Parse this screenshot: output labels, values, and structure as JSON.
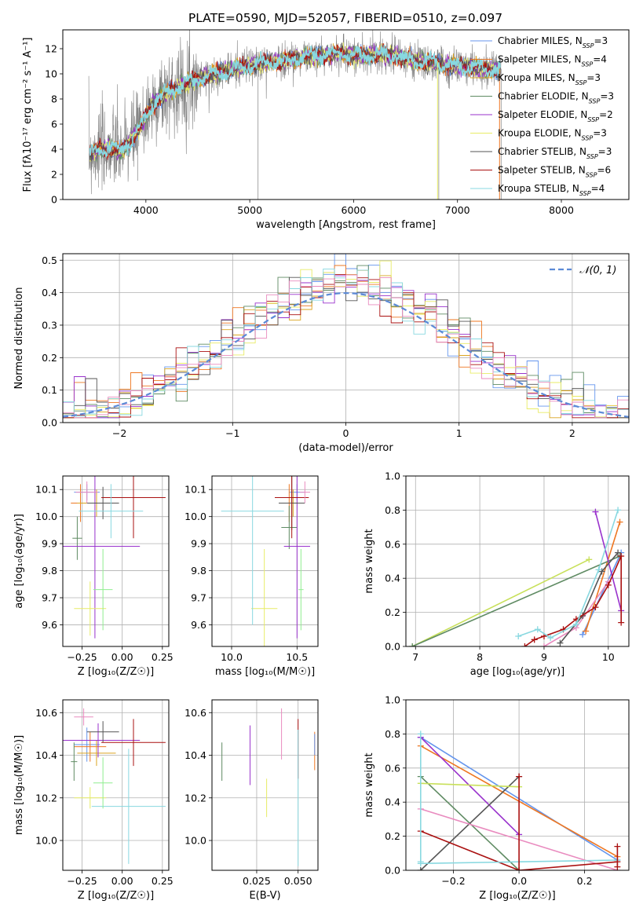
{
  "title": "PLATE=0590, MJD=52057, FIBERID=0510, z=0.097",
  "colors": {
    "Chabrier MILES": "#6495ed",
    "Salpeter MILES": "#ee7722",
    "Kroupa MILES": "#daa520",
    "Chabrier ELODIE": "#5f8b63",
    "Salpeter ELODIE": "#9932cc",
    "Kroupa ELODIE": "#e8ec66",
    "Chabrier STELIB": "#555555",
    "Salpeter STELIB": "#aa1111",
    "Kroupa STELIB": "#88d8e0",
    "gray": "#808080",
    "normal": "#5c8ad6",
    "pink": "#e98bbf",
    "ygreen": "#c8e05a",
    "lgreen": "#90ee90"
  },
  "chart_data": [
    {
      "id": "spectrum",
      "type": "line",
      "title": "PLATE=0590, MJD=52057, FIBERID=0510, z=0.097",
      "xlabel": "wavelength [Angstrom, rest frame]",
      "ylabel": "Flux [fλ10⁻¹⁷ erg cm⁻² s⁻¹ A⁻¹]",
      "xlim": [
        3200,
        8650
      ],
      "ylim": [
        0,
        13.5
      ],
      "xticks": [
        4000,
        5000,
        6000,
        7000,
        8000
      ],
      "yticks": [
        0,
        2,
        4,
        6,
        8,
        10,
        12
      ],
      "continuum": {
        "x": [
          3450,
          3550,
          3650,
          3750,
          3850,
          3950,
          4050,
          4150,
          4300,
          4500,
          4700,
          4900,
          5100,
          5300,
          5500,
          5700,
          5900,
          6100,
          6300,
          6500,
          6700,
          6900,
          7100,
          7300,
          7420
        ],
        "y": [
          3.6,
          4.0,
          4.1,
          3.8,
          4.6,
          5.8,
          7.4,
          8.2,
          8.9,
          9.6,
          10.1,
          10.5,
          10.8,
          11.0,
          11.3,
          11.5,
          11.6,
          11.4,
          11.6,
          11.2,
          10.9,
          10.7,
          10.6,
          10.3,
          10.4
        ]
      },
      "legend": [
        {
          "label": "Chabrier MILES, N",
          "sub": "SSP",
          "suffix": "=3"
        },
        {
          "label": "Salpeter MILES, N",
          "sub": "SSP",
          "suffix": "=4"
        },
        {
          "label": "Kroupa MILES, N",
          "sub": "SSP",
          "suffix": "=3"
        },
        {
          "label": "Chabrier ELODIE, N",
          "sub": "SSP",
          "suffix": "=3"
        },
        {
          "label": "Salpeter ELODIE, N",
          "sub": "SSP",
          "suffix": "=2"
        },
        {
          "label": "Kroupa ELODIE, N",
          "sub": "SSP",
          "suffix": "=3"
        },
        {
          "label": "Chabrier STELIB, N",
          "sub": "SSP",
          "suffix": "=3"
        },
        {
          "label": "Salpeter STELIB, N",
          "sub": "SSP",
          "suffix": "=6"
        },
        {
          "label": "Kroupa STELIB, N",
          "sub": "SSP",
          "suffix": "=4"
        }
      ],
      "legend_position": "right"
    },
    {
      "id": "residuals",
      "type": "histogram",
      "xlabel": "(data-model)/error",
      "ylabel": "Normed distribution",
      "xlim": [
        -2.5,
        2.5
      ],
      "ylim": [
        0,
        0.52
      ],
      "xticks": [
        -2,
        -1,
        0,
        1,
        2
      ],
      "yticks": [
        0.0,
        0.1,
        0.2,
        0.3,
        0.4,
        0.5
      ],
      "bin_width": 0.1,
      "legend": "𝒩(0, 1)",
      "legend_position": "top-right",
      "grid": true
    },
    {
      "id": "age-vs-Z",
      "type": "errorbar",
      "xlabel": "Z [log₁₀(Z/Z☉)]",
      "ylabel": "age [log₁₀(age/yr)]",
      "xlim": [
        -0.37,
        0.29
      ],
      "ylim": [
        9.52,
        10.15
      ],
      "xticks": [
        -0.25,
        0.0,
        0.25
      ],
      "xticklabels": [
        "−0.25",
        "0.00",
        "0.25"
      ],
      "yticks": [
        9.6,
        9.7,
        9.8,
        9.9,
        10.0,
        10.1
      ],
      "grid": true,
      "points": [
        {
          "c": "Chabrier MILES",
          "x": -0.22,
          "xe": 0.08,
          "y": 10.09,
          "ye": 0.03
        },
        {
          "c": "Salpeter MILES",
          "x": -0.26,
          "xe": 0.06,
          "y": 10.05,
          "ye": 0.07
        },
        {
          "c": "Kroupa MILES",
          "x": -0.16,
          "xe": 0.12,
          "y": 10.05,
          "ye": 0.05
        },
        {
          "c": "Chabrier ELODIE",
          "x": -0.28,
          "xe": 0.03,
          "y": 9.92,
          "ye": 0.08
        },
        {
          "c": "Salpeter ELODIE",
          "x": -0.17,
          "xe": 0.28,
          "y": 9.89,
          "ye": 0.34
        },
        {
          "c": "Kroupa ELODIE",
          "x": -0.2,
          "xe": 0.1,
          "y": 9.66,
          "ye": 0.1
        },
        {
          "c": "Chabrier STELIB",
          "x": -0.12,
          "xe": 0.1,
          "y": 10.05,
          "ye": 0.06
        },
        {
          "c": "Salpeter STELIB",
          "x": 0.07,
          "xe": 0.2,
          "y": 10.07,
          "ye": 0.15
        },
        {
          "c": "Kroupa STELIB",
          "x": -0.07,
          "xe": 0.2,
          "y": 10.02,
          "ye": 0.1
        },
        {
          "c": "lgreen",
          "x": -0.12,
          "xe": 0.06,
          "y": 9.73,
          "ye": 0.15
        },
        {
          "c": "pink",
          "x": -0.22,
          "xe": 0.07,
          "y": 10.09,
          "ye": 0.04
        }
      ]
    },
    {
      "id": "age-vs-mass",
      "type": "errorbar",
      "xlabel": "mass [log₁₀(M/M☉)]",
      "xlim": [
        9.85,
        10.66
      ],
      "ylim": [
        9.52,
        10.15
      ],
      "xticks": [
        10.0,
        10.5
      ],
      "xticklabels": [
        "10.0",
        "10.5"
      ],
      "yticks": [
        9.6,
        9.7,
        9.8,
        9.9,
        10.0,
        10.1
      ],
      "grid": true,
      "points": [
        {
          "c": "Chabrier MILES",
          "x": 10.5,
          "xe": 0.06,
          "y": 10.09,
          "ye": 0.03
        },
        {
          "c": "Salpeter MILES",
          "x": 10.44,
          "xe": 0.05,
          "y": 10.05,
          "ye": 0.07
        },
        {
          "c": "Kroupa MILES",
          "x": 10.47,
          "xe": 0.04,
          "y": 10.05,
          "ye": 0.05
        },
        {
          "c": "Chabrier ELODIE",
          "x": 10.44,
          "xe": 0.06,
          "y": 9.96,
          "ye": 0.08
        },
        {
          "c": "Salpeter ELODIE",
          "x": 10.5,
          "xe": 0.1,
          "y": 9.89,
          "ye": 0.34
        },
        {
          "c": "Kroupa ELODIE",
          "x": 10.25,
          "xe": 0.1,
          "y": 9.66,
          "ye": 0.22
        },
        {
          "c": "Chabrier STELIB",
          "x": 10.46,
          "xe": 0.1,
          "y": 10.05,
          "ye": 0.1
        },
        {
          "c": "Salpeter STELIB",
          "x": 10.46,
          "xe": 0.13,
          "y": 10.07,
          "ye": 0.15
        },
        {
          "c": "Kroupa STELIB",
          "x": 10.16,
          "xe": 0.24,
          "y": 10.02,
          "ye": 0.42
        },
        {
          "c": "lgreen",
          "x": 10.53,
          "xe": 0.02,
          "y": 9.73,
          "ye": 0.15
        },
        {
          "c": "pink",
          "x": 10.56,
          "xe": 0.04,
          "y": 10.09,
          "ye": 0.04
        }
      ]
    },
    {
      "id": "weight-vs-age",
      "type": "line",
      "xlabel": "age [log₁₀(age/yr)]",
      "ylabel": "mass weight",
      "xlim": [
        6.85,
        10.32
      ],
      "ylim": [
        0,
        1
      ],
      "xticks": [
        7,
        8,
        9,
        10
      ],
      "yticks": [
        0.0,
        0.2,
        0.4,
        0.6,
        0.8,
        1.0
      ],
      "grid": true,
      "series": [
        {
          "c": "Chabrier MILES",
          "x": [
            9.6,
            10.2
          ],
          "y": [
            0.07,
            0.55
          ]
        },
        {
          "c": "Salpeter MILES",
          "x": [
            9.65,
            10.18
          ],
          "y": [
            0.09,
            0.73
          ]
        },
        {
          "c": "ygreen",
          "x": [
            6.95,
            9.7
          ],
          "y": [
            0.0,
            0.51
          ]
        },
        {
          "c": "Chabrier ELODIE",
          "x": [
            6.95,
            10.18
          ],
          "y": [
            0.0,
            0.53
          ]
        },
        {
          "c": "Salpeter ELODIE",
          "x": [
            9.8,
            10.2
          ],
          "y": [
            0.79,
            0.21
          ]
        },
        {
          "c": "pink",
          "x": [
            9.0,
            9.5,
            10.0
          ],
          "y": [
            0.0,
            0.11,
            0.38
          ]
        },
        {
          "c": "Chabrier STELIB",
          "x": [
            9.25,
            9.6,
            9.9,
            10.15
          ],
          "y": [
            0.02,
            0.18,
            0.44,
            0.55
          ]
        },
        {
          "c": "Salpeter STELIB",
          "x": [
            8.7,
            8.85,
            9.0,
            9.3,
            9.5,
            9.8,
            10.0,
            10.2,
            10.2
          ],
          "y": [
            0.0,
            0.04,
            0.06,
            0.1,
            0.16,
            0.23,
            0.36,
            0.53,
            0.14
          ]
        },
        {
          "c": "Kroupa STELIB",
          "x": [
            8.6,
            8.9,
            9.1,
            9.5,
            9.85,
            10.15
          ],
          "y": [
            0.06,
            0.1,
            0.05,
            0.13,
            0.45,
            0.8
          ]
        }
      ]
    },
    {
      "id": "mass-vs-Z",
      "type": "errorbar",
      "xlabel": "Z [log₁₀(Z/Z☉)]",
      "ylabel": "mass [log₁₀(M/M☉)]",
      "xlim": [
        -0.37,
        0.29
      ],
      "ylim": [
        9.86,
        10.66
      ],
      "xticks": [
        -0.25,
        0.0,
        0.25
      ],
      "xticklabels": [
        "−0.25",
        "0.00",
        "0.25"
      ],
      "yticks": [
        10.0,
        10.2,
        10.4,
        10.6
      ],
      "grid": true,
      "points": [
        {
          "c": "Chabrier MILES",
          "x": -0.22,
          "xe": 0.08,
          "y": 10.45,
          "ye": 0.08
        },
        {
          "c": "Salpeter MILES",
          "x": -0.2,
          "xe": 0.1,
          "y": 10.44,
          "ye": 0.07
        },
        {
          "c": "Kroupa MILES",
          "x": -0.16,
          "xe": 0.12,
          "y": 10.41,
          "ye": 0.06
        },
        {
          "c": "Chabrier ELODIE",
          "x": -0.3,
          "xe": 0.02,
          "y": 10.37,
          "ye": 0.09
        },
        {
          "c": "Salpeter ELODIE",
          "x": -0.15,
          "xe": 0.26,
          "y": 10.47,
          "ye": 0.08
        },
        {
          "c": "Kroupa ELODIE",
          "x": -0.2,
          "xe": 0.1,
          "y": 10.2,
          "ye": 0.05
        },
        {
          "c": "Chabrier STELIB",
          "x": -0.12,
          "xe": 0.1,
          "y": 10.51,
          "ye": 0.05
        },
        {
          "c": "Salpeter STELIB",
          "x": 0.07,
          "xe": 0.2,
          "y": 10.46,
          "ye": 0.11
        },
        {
          "c": "Kroupa STELIB",
          "x": 0.04,
          "xe": 0.23,
          "y": 10.16,
          "ye": 0.27
        },
        {
          "c": "lgreen",
          "x": -0.12,
          "xe": 0.06,
          "y": 10.27,
          "ye": 0.12
        },
        {
          "c": "pink",
          "x": -0.24,
          "xe": 0.06,
          "y": 10.58,
          "ye": 0.04
        }
      ]
    },
    {
      "id": "mass-vs-ebv",
      "type": "errorbar",
      "xlabel": "E(B-V)",
      "xlim": [
        -0.002,
        0.062
      ],
      "ylim": [
        9.86,
        10.66
      ],
      "xticks": [
        0.025,
        0.05
      ],
      "xticklabels": [
        "0.025",
        "0.050"
      ],
      "yticks": [
        10.0,
        10.2,
        10.4,
        10.6
      ],
      "grid": true,
      "points": [
        {
          "c": "Chabrier ELODIE",
          "x": 0.004,
          "y": 10.37,
          "ye": 0.09
        },
        {
          "c": "Salpeter ELODIE",
          "x": 0.021,
          "y": 10.4,
          "ye": 0.14
        },
        {
          "c": "Kroupa ELODIE",
          "x": 0.031,
          "y": 10.2,
          "ye": 0.09
        },
        {
          "c": "pink",
          "x": 0.04,
          "y": 10.5,
          "ye": 0.12
        },
        {
          "c": "Salpeter STELIB",
          "x": 0.05,
          "y": 10.43,
          "ye": 0.14
        },
        {
          "c": "Kroupa STELIB",
          "x": 0.05,
          "y": 10.2,
          "ye": 0.32
        },
        {
          "c": "Salpeter MILES",
          "x": 0.06,
          "y": 10.42,
          "ye": 0.09
        },
        {
          "c": "Chabrier MILES",
          "x": 0.06,
          "y": 10.45,
          "ye": 0.05
        }
      ]
    },
    {
      "id": "weight-vs-Z",
      "type": "line",
      "xlabel": "Z [log₁₀(Z/Z☉)]",
      "ylabel": "mass weight",
      "xlim": [
        -0.345,
        0.335
      ],
      "ylim": [
        0,
        1
      ],
      "xticks": [
        -0.2,
        0.0,
        0.2
      ],
      "xticklabels": [
        "−0.2",
        "0.0",
        "0.2"
      ],
      "yticks": [
        0.0,
        0.2,
        0.4,
        0.6,
        0.8,
        1.0
      ],
      "grid": true,
      "series": [
        {
          "c": "Chabrier MILES",
          "x": [
            -0.3,
            0.3
          ],
          "y": [
            0.78,
            0.06
          ]
        },
        {
          "c": "Salpeter MILES",
          "x": [
            -0.3,
            0.3
          ],
          "y": [
            0.73,
            0.08
          ]
        },
        {
          "c": "Salpeter ELODIE",
          "x": [
            -0.3,
            0.0
          ],
          "y": [
            0.78,
            0.21
          ]
        },
        {
          "c": "Chabrier ELODIE",
          "x": [
            -0.3,
            0.0
          ],
          "y": [
            0.55,
            0.0
          ]
        },
        {
          "c": "Chabrier STELIB",
          "x": [
            -0.3,
            0.0
          ],
          "y": [
            0.0,
            0.55
          ]
        },
        {
          "c": "ygreen",
          "x": [
            -0.3,
            0.0
          ],
          "y": [
            0.51,
            0.49
          ]
        },
        {
          "c": "pink",
          "x": [
            -0.3,
            0.3
          ],
          "y": [
            0.36,
            0.0
          ]
        },
        {
          "c": "Salpeter STELIB",
          "x": [
            -0.3,
            0.0,
            0.3
          ],
          "y": [
            0.23,
            0.0,
            0.05
          ]
        },
        {
          "c": "Kroupa STELIB",
          "x": [
            -0.3,
            0.0,
            0.3
          ],
          "y": [
            0.04,
            0.05,
            0.06
          ]
        },
        {
          "c": "Kroupa STELIB",
          "x": [
            -0.3,
            -0.3
          ],
          "y": [
            0.05,
            0.8
          ]
        },
        {
          "c": "Salpeter STELIB",
          "x": [
            0.0,
            0.0
          ],
          "y": [
            0.0,
            0.55
          ]
        },
        {
          "c": "Salpeter STELIB",
          "x": [
            0.3,
            0.3
          ],
          "y": [
            0.02,
            0.14
          ]
        }
      ]
    }
  ]
}
